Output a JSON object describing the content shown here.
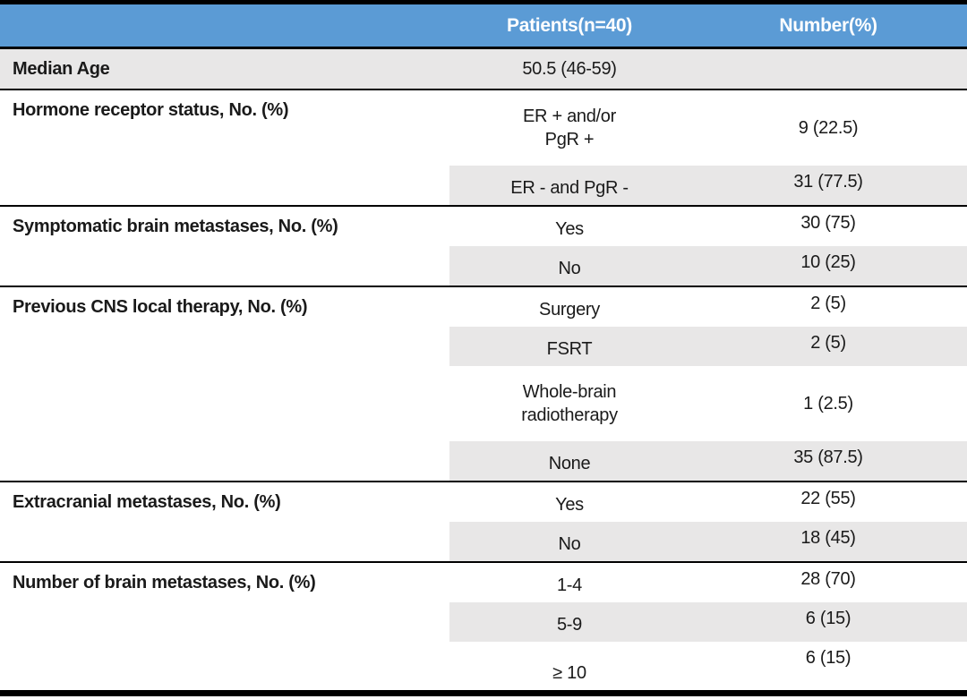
{
  "colors": {
    "header_bg": "#5B9BD5",
    "header_text": "#FFFFFF",
    "shade": "#E8E7E7",
    "line": "#000000",
    "body_text": "#1A1A1A"
  },
  "header": {
    "patients_label": "Patients(n=40)",
    "number_label": "Number(%)"
  },
  "table": {
    "sections": [
      {
        "label": "Median Age",
        "full_shade": true,
        "rows": [
          {
            "lines": [
              "50.5 (46-59)"
            ],
            "number": "",
            "shaded": false
          }
        ]
      },
      {
        "label": "Hormone receptor status, No. (%)",
        "full_shade": false,
        "rows": [
          {
            "lines": [
              "ER + and/or",
              "PgR +"
            ],
            "number": "9 (22.5)",
            "shaded": false
          },
          {
            "lines": [
              "ER - and PgR -"
            ],
            "number": "31 (77.5)",
            "shaded": true
          }
        ]
      },
      {
        "label": "Symptomatic brain metastases, No. (%)",
        "full_shade": false,
        "rows": [
          {
            "lines": [
              "Yes"
            ],
            "number": "30 (75)",
            "shaded": false
          },
          {
            "lines": [
              "No"
            ],
            "number": "10 (25)",
            "shaded": true
          }
        ]
      },
      {
        "label": "Previous CNS local therapy, No. (%)",
        "full_shade": false,
        "rows": [
          {
            "lines": [
              "Surgery"
            ],
            "number": "2 (5)",
            "shaded": false
          },
          {
            "lines": [
              "FSRT"
            ],
            "number": "2 (5)",
            "shaded": true
          },
          {
            "lines": [
              "Whole-brain",
              "radiotherapy"
            ],
            "number": "1 (2.5)",
            "shaded": false
          },
          {
            "lines": [
              "None"
            ],
            "number": "35 (87.5)",
            "shaded": true
          }
        ]
      },
      {
        "label": "Extracranial metastases, No. (%)",
        "full_shade": false,
        "rows": [
          {
            "lines": [
              "Yes"
            ],
            "number": "22 (55)",
            "shaded": false
          },
          {
            "lines": [
              "No"
            ],
            "number": "18 (45)",
            "shaded": true
          }
        ]
      },
      {
        "label": "Number of brain metastases, No. (%)",
        "full_shade": false,
        "rows": [
          {
            "lines": [
              "1-4"
            ],
            "number": "28 (70)",
            "shaded": false
          },
          {
            "lines": [
              "5-9"
            ],
            "number": "6 (15)",
            "shaded": true
          },
          {
            "lines": [
              "≥ 10"
            ],
            "number": "6 (15)",
            "shaded": false
          }
        ]
      }
    ]
  },
  "chart_data": {
    "type": "table",
    "columns": [
      "",
      "Patients(n=40)",
      "Number(%)"
    ],
    "rows": [
      [
        "Median Age",
        "50.5 (46-59)",
        ""
      ],
      [
        "Hormone receptor status, No. (%)",
        "ER + and/or PgR +",
        "9 (22.5)"
      ],
      [
        "",
        "ER - and PgR -",
        "31 (77.5)"
      ],
      [
        "Symptomatic brain metastases, No. (%)",
        "Yes",
        "30 (75)"
      ],
      [
        "",
        "No",
        "10 (25)"
      ],
      [
        "Previous CNS local therapy, No. (%)",
        "Surgery",
        "2 (5)"
      ],
      [
        "",
        "FSRT",
        "2 (5)"
      ],
      [
        "",
        "Whole-brain radiotherapy",
        "1 (2.5)"
      ],
      [
        "",
        "None",
        "35 (87.5)"
      ],
      [
        "Extracranial metastases, No. (%)",
        "Yes",
        "22 (55)"
      ],
      [
        "",
        "No",
        "18 (45)"
      ],
      [
        "Number of brain metastases, No. (%)",
        "1-4",
        "28 (70)"
      ],
      [
        "",
        "5-9",
        "6 (15)"
      ],
      [
        "",
        "≥ 10",
        "6 (15)"
      ]
    ]
  }
}
